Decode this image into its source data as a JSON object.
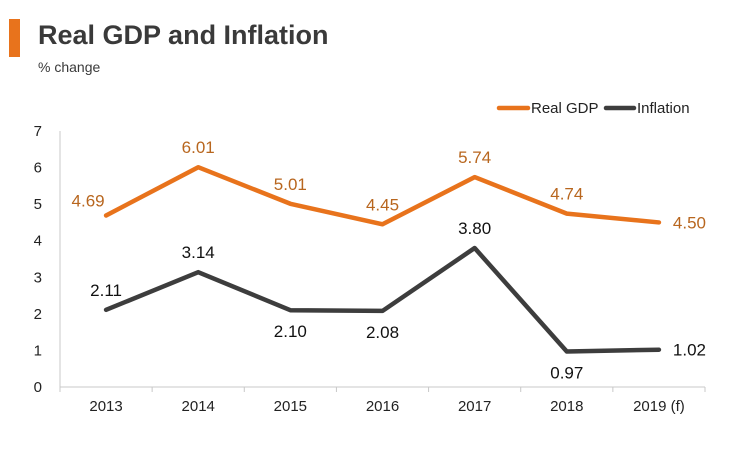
{
  "header": {
    "title": "Real GDP and Inflation",
    "subtitle": "% change"
  },
  "colors": {
    "accent": "#e8731c",
    "gdp": "#e8731c",
    "gdp_label": "#b8661e",
    "inflation": "#3d3d3d",
    "inflation_label": "#111111",
    "axis": "#c8c8c8",
    "text": "#222222"
  },
  "chart_data": {
    "type": "line",
    "title": "Real GDP and Inflation",
    "subtitle": "% change",
    "xlabel": "",
    "ylabel": "",
    "categories": [
      "2013",
      "2014",
      "2015",
      "2016",
      "2017",
      "2018",
      "2019 (f)"
    ],
    "ylim": [
      0,
      7
    ],
    "yticks": [
      "0",
      "1",
      "2",
      "3",
      "4",
      "5",
      "6",
      "7"
    ],
    "grid": false,
    "legend_position": "top-right",
    "series": [
      {
        "name": "Real GDP",
        "values": [
          4.69,
          6.01,
          5.01,
          4.45,
          5.74,
          4.74,
          4.5
        ],
        "labels": [
          "4.69",
          "6.01",
          "5.01",
          "4.45",
          "5.74",
          "4.74",
          "4.50"
        ]
      },
      {
        "name": "Inflation",
        "values": [
          2.11,
          3.14,
          2.1,
          2.08,
          3.8,
          0.97,
          1.02
        ],
        "labels": [
          "2.11",
          "3.14",
          "2.10",
          "2.08",
          "3.80",
          "0.97",
          "1.02"
        ]
      }
    ]
  }
}
